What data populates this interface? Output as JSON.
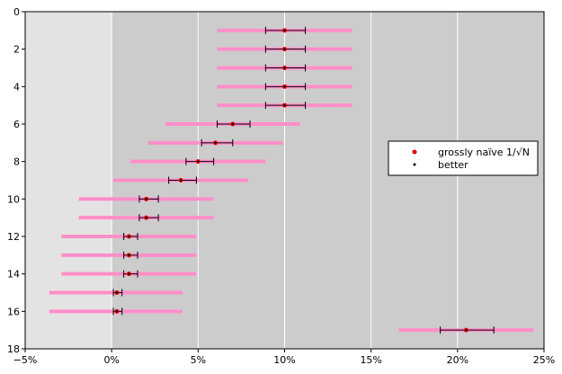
{
  "chart_data": {
    "type": "scatter",
    "title": "",
    "xlabel": "",
    "ylabel": "",
    "xlim": [
      -5,
      25
    ],
    "ylim": [
      18,
      0
    ],
    "x_ticks": [
      -5,
      0,
      5,
      10,
      15,
      20,
      25
    ],
    "x_tick_labels": [
      "−5%",
      "0%",
      "5%",
      "10%",
      "15%",
      "20%",
      "25%"
    ],
    "y_ticks": [
      0,
      2,
      4,
      6,
      8,
      10,
      12,
      14,
      16,
      18
    ],
    "y_tick_labels": [
      "0",
      "2",
      "4",
      "6",
      "8",
      "10",
      "12",
      "14",
      "16",
      "18"
    ],
    "shaded_region": {
      "x_from": -5,
      "x_to": 0
    },
    "colors": {
      "plot_background": "#cccccc",
      "shaded_background": "#e3e3e3",
      "naive_bar": "#ff8ec8",
      "naive_marker": "#e00000",
      "better_bar": "#000000",
      "better_marker": "#000000"
    },
    "rows": [
      1,
      2,
      3,
      4,
      5,
      6,
      7,
      8,
      9,
      10,
      11,
      12,
      13,
      14,
      15,
      16,
      17
    ],
    "point_values": [
      10.0,
      10.0,
      10.0,
      10.0,
      10.0,
      7.0,
      6.0,
      5.0,
      4.0,
      2.0,
      2.0,
      1.0,
      1.0,
      1.0,
      0.3,
      0.3,
      20.5
    ],
    "series": [
      {
        "name": "grossly naïve 1/√N",
        "marker": "red-dot",
        "low": [
          6.1,
          6.1,
          6.1,
          6.1,
          6.1,
          3.1,
          2.1,
          1.1,
          0.1,
          -1.9,
          -1.9,
          -2.9,
          -2.9,
          -2.9,
          -3.6,
          -3.6,
          16.6
        ],
        "high": [
          13.9,
          13.9,
          13.9,
          13.9,
          13.9,
          10.9,
          9.9,
          8.9,
          7.9,
          5.9,
          5.9,
          4.9,
          4.9,
          4.9,
          4.1,
          4.1,
          24.4
        ]
      },
      {
        "name": "better",
        "marker": "black-dot",
        "low": [
          8.9,
          8.9,
          8.9,
          8.9,
          8.9,
          6.1,
          5.2,
          4.3,
          3.3,
          1.6,
          1.6,
          0.7,
          0.7,
          0.7,
          0.1,
          0.1,
          19.0
        ],
        "high": [
          11.2,
          11.2,
          11.2,
          11.2,
          11.2,
          8.0,
          7.0,
          5.9,
          4.9,
          2.7,
          2.7,
          1.5,
          1.5,
          1.5,
          0.6,
          0.6,
          22.1
        ]
      }
    ],
    "legend_position": "right"
  }
}
